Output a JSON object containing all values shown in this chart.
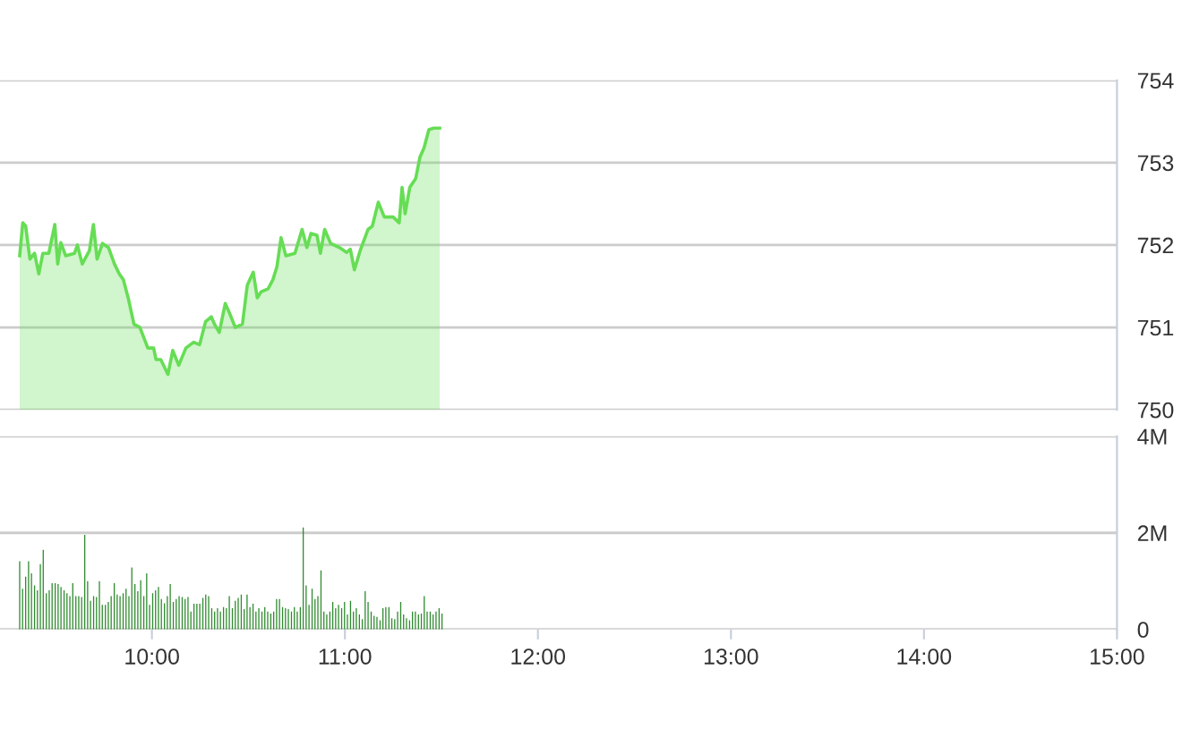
{
  "chart_data": [
    {
      "type": "area",
      "xlim": [
        9.213,
        15.0
      ],
      "ylim": [
        750,
        754
      ],
      "yticks": [
        750,
        751,
        752,
        753,
        754
      ],
      "grid": "y",
      "tick_labels": "y",
      "series": [
        {
          "color": "#66dd55",
          "x": [
            9.315,
            9.331,
            9.346,
            9.368,
            9.392,
            9.414,
            9.435,
            9.466,
            9.497,
            9.512,
            9.528,
            9.553,
            9.599,
            9.614,
            9.639,
            9.676,
            9.697,
            9.716,
            9.744,
            9.775,
            9.806,
            9.831,
            9.852,
            9.877,
            9.907,
            9.938,
            9.979,
            10.009,
            10.021,
            10.046,
            10.083,
            10.108,
            10.139,
            10.176,
            10.216,
            10.247,
            10.278,
            10.308,
            10.324,
            10.349,
            10.38,
            10.401,
            10.432,
            10.469,
            10.494,
            10.525,
            10.546,
            10.565,
            10.602,
            10.627,
            10.648,
            10.669,
            10.694,
            10.741,
            10.778,
            10.803,
            10.824,
            10.855,
            10.873,
            10.895,
            10.926,
            10.972,
            11.009,
            11.028,
            11.049,
            11.08,
            11.12,
            11.142,
            11.173,
            11.204,
            11.25,
            11.281,
            11.296,
            11.312,
            11.336,
            11.367,
            11.389,
            11.41,
            11.435,
            11.46,
            11.491
          ],
          "values": [
            751.87,
            752.27,
            752.23,
            751.83,
            751.9,
            751.65,
            751.9,
            751.9,
            752.25,
            751.77,
            752.03,
            751.87,
            751.9,
            752.0,
            751.77,
            751.93,
            752.25,
            751.83,
            752.02,
            751.97,
            751.77,
            751.65,
            751.58,
            751.36,
            751.04,
            751.0,
            750.75,
            750.75,
            750.61,
            750.61,
            750.43,
            750.72,
            750.54,
            750.75,
            750.82,
            750.79,
            751.07,
            751.13,
            751.04,
            750.94,
            751.29,
            751.18,
            751.0,
            751.04,
            751.51,
            751.67,
            751.36,
            751.43,
            751.47,
            751.58,
            751.74,
            752.09,
            751.87,
            751.9,
            752.19,
            751.97,
            752.14,
            752.12,
            751.9,
            752.19,
            752.02,
            751.97,
            751.91,
            751.95,
            751.7,
            751.94,
            752.19,
            752.23,
            752.52,
            752.34,
            752.34,
            752.27,
            752.7,
            752.38,
            752.7,
            752.81,
            753.07,
            753.18,
            753.4,
            753.42,
            753.42
          ]
        }
      ]
    },
    {
      "type": "bar",
      "xlim": [
        9.213,
        15.0
      ],
      "ylim": [
        0,
        4
      ],
      "yticks": [
        0,
        {
          "value": 2,
          "label": "2M"
        },
        {
          "value": 4,
          "label": "4M"
        }
      ],
      "grid": "y",
      "xticks": [
        {
          "value": 10,
          "label": "10:00"
        },
        {
          "value": 11,
          "label": "11:00"
        },
        {
          "value": 12,
          "label": "12:00"
        },
        {
          "value": 13,
          "label": "13:00"
        },
        {
          "value": 14,
          "label": "14:00"
        },
        {
          "value": 15,
          "label": "15:00"
        }
      ],
      "series": [
        {
          "color": "#2e8b2e",
          "x": [
            9.315,
            9.33,
            9.346,
            9.361,
            9.376,
            9.392,
            9.407,
            9.422,
            9.437,
            9.453,
            9.468,
            9.483,
            9.499,
            9.514,
            9.529,
            9.545,
            9.56,
            9.575,
            9.59,
            9.606,
            9.621,
            9.636,
            9.652,
            9.667,
            9.682,
            9.698,
            9.713,
            9.728,
            9.743,
            9.759,
            9.774,
            9.789,
            9.805,
            9.82,
            9.835,
            9.851,
            9.866,
            9.881,
            9.896,
            9.912,
            9.927,
            9.942,
            9.958,
            9.973,
            9.988,
            10.004,
            10.019,
            10.034,
            10.049,
            10.065,
            10.08,
            10.095,
            10.111,
            10.126,
            10.141,
            10.157,
            10.172,
            10.187,
            10.202,
            10.218,
            10.233,
            10.248,
            10.264,
            10.279,
            10.294,
            10.31,
            10.325,
            10.34,
            10.355,
            10.371,
            10.386,
            10.401,
            10.417,
            10.432,
            10.447,
            10.463,
            10.478,
            10.493,
            10.508,
            10.524,
            10.539,
            10.554,
            10.57,
            10.585,
            10.6,
            10.616,
            10.631,
            10.646,
            10.661,
            10.677,
            10.692,
            10.707,
            10.723,
            10.738,
            10.753,
            10.769,
            10.784,
            10.799,
            10.814,
            10.83,
            10.845,
            10.86,
            10.876,
            10.891,
            10.906,
            10.922,
            10.937,
            10.952,
            10.967,
            10.983,
            10.998,
            11.013,
            11.029,
            11.044,
            11.059,
            11.075,
            11.09,
            11.105,
            11.12,
            11.136,
            11.151,
            11.166,
            11.182,
            11.197,
            11.212,
            11.228,
            11.243,
            11.258,
            11.273,
            11.289,
            11.304,
            11.319,
            11.335,
            11.35,
            11.365,
            11.381,
            11.396,
            11.411,
            11.426,
            11.442,
            11.457,
            11.472,
            11.488,
            11.503
          ],
          "values": [
            1.41,
            0.84,
            1.09,
            1.41,
            1.16,
            0.91,
            0.81,
            1.35,
            1.65,
            0.75,
            0.81,
            0.96,
            0.96,
            0.94,
            0.88,
            0.81,
            0.75,
            0.69,
            0.96,
            0.69,
            0.69,
            0.67,
            1.96,
            1.0,
            0.59,
            0.69,
            0.67,
            1.0,
            0.51,
            0.51,
            0.57,
            0.69,
            0.96,
            0.72,
            0.69,
            0.75,
            0.84,
            0.69,
            1.28,
            0.94,
            0.79,
            1.02,
            0.69,
            1.16,
            0.51,
            0.75,
            0.81,
            0.88,
            0.63,
            0.54,
            0.69,
            0.94,
            0.57,
            0.63,
            0.69,
            0.67,
            0.63,
            0.67,
            0.37,
            0.53,
            0.53,
            0.53,
            0.65,
            0.72,
            0.69,
            0.44,
            0.37,
            0.44,
            0.37,
            0.46,
            0.44,
            0.69,
            0.44,
            0.59,
            0.65,
            0.72,
            0.42,
            0.72,
            0.46,
            0.53,
            0.37,
            0.44,
            0.37,
            0.46,
            0.37,
            0.33,
            0.37,
            0.63,
            0.63,
            0.46,
            0.44,
            0.42,
            0.37,
            0.46,
            0.37,
            0.46,
            2.11,
            0.91,
            0.51,
            0.84,
            0.63,
            0.69,
            1.22,
            0.37,
            0.31,
            0.37,
            0.57,
            0.44,
            0.51,
            0.44,
            0.57,
            0.31,
            0.59,
            0.37,
            0.44,
            0.31,
            0.21,
            0.79,
            0.57,
            0.37,
            0.28,
            0.26,
            0.19,
            0.44,
            0.46,
            0.46,
            0.23,
            0.21,
            0.37,
            0.57,
            0.31,
            0.23,
            0.19,
            0.37,
            0.37,
            0.31,
            0.33,
            0.69,
            0.37,
            0.37,
            0.31,
            0.37,
            0.44,
            0.33
          ]
        }
      ]
    }
  ]
}
